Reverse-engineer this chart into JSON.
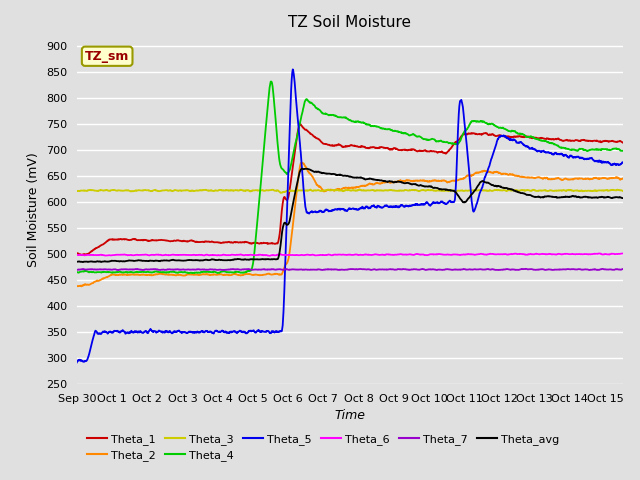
{
  "title": "TZ Soil Moisture",
  "xlabel": "Time",
  "ylabel": "Soil Moisture (mV)",
  "ylim": [
    250,
    920
  ],
  "yticks": [
    250,
    300,
    350,
    400,
    450,
    500,
    550,
    600,
    650,
    700,
    750,
    800,
    850,
    900
  ],
  "xlim": [
    0,
    15.5
  ],
  "xtick_labels": [
    "Sep 30",
    "Oct 1",
    "Oct 2",
    "Oct 3",
    "Oct 4",
    "Oct 5",
    "Oct 6",
    "Oct 7",
    "Oct 8",
    "Oct 9",
    "Oct 10",
    "Oct 11",
    "Oct 12",
    "Oct 13",
    "Oct 14",
    "Oct 15"
  ],
  "xtick_positions": [
    0,
    1,
    2,
    3,
    4,
    5,
    6,
    7,
    8,
    9,
    10,
    11,
    12,
    13,
    14,
    15
  ],
  "background_color": "#e0e0e0",
  "plot_bg_color": "#e0e0e0",
  "grid_color": "#ffffff",
  "line_colors": {
    "Theta_1": "#cc0000",
    "Theta_2": "#ff8800",
    "Theta_3": "#cccc00",
    "Theta_4": "#00cc00",
    "Theta_5": "#0000ee",
    "Theta_6": "#ff00ff",
    "Theta_7": "#9900cc",
    "Theta_avg": "#000000"
  },
  "annotation_text": "TZ_sm",
  "annotation_color": "#990000",
  "annotation_bg": "#ffffcc",
  "annotation_border": "#999900"
}
